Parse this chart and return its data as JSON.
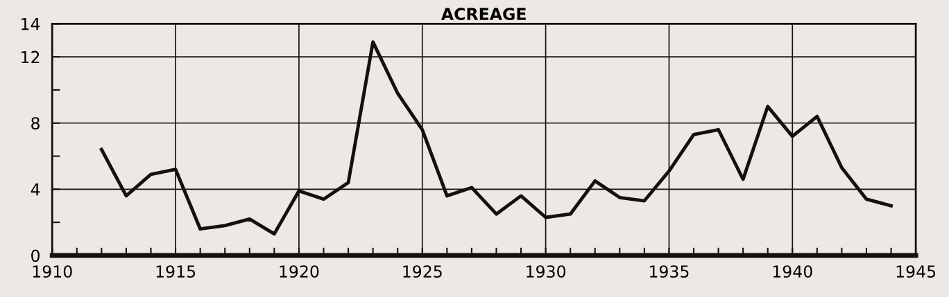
{
  "chart_data": {
    "type": "line",
    "title": "ACREAGE",
    "x": [
      1912,
      1913,
      1914,
      1915,
      1916,
      1917,
      1918,
      1919,
      1920,
      1921,
      1922,
      1923,
      1924,
      1925,
      1926,
      1927,
      1928,
      1929,
      1930,
      1931,
      1932,
      1933,
      1934,
      1935,
      1936,
      1937,
      1938,
      1939,
      1940,
      1941,
      1942,
      1943,
      1944
    ],
    "series": [
      {
        "color": "#111111",
        "values": [
          6.4,
          3.6,
          4.9,
          5.2,
          1.6,
          1.8,
          2.2,
          1.3,
          3.9,
          3.4,
          4.4,
          12.9,
          9.8,
          7.6,
          3.6,
          4.1,
          2.5,
          3.6,
          2.3,
          2.5,
          4.5,
          3.5,
          3.3,
          5.1,
          7.3,
          7.6,
          4.6,
          9.0,
          7.2,
          8.4,
          5.3,
          3.4,
          3.0
        ]
      }
    ],
    "xlim": [
      1910,
      1945
    ],
    "xticks": [
      1910,
      {
        "value": 1911,
        "label": null
      },
      {
        "value": 1912,
        "label": null
      },
      {
        "value": 1913,
        "label": null
      },
      {
        "value": 1914,
        "label": null
      },
      1915,
      {
        "value": 1916,
        "label": null
      },
      {
        "value": 1917,
        "label": null
      },
      {
        "value": 1918,
        "label": null
      },
      {
        "value": 1919,
        "label": null
      },
      1920,
      {
        "value": 1921,
        "label": null
      },
      {
        "value": 1922,
        "label": null
      },
      {
        "value": 1923,
        "label": null
      },
      {
        "value": 1924,
        "label": null
      },
      1925,
      {
        "value": 1926,
        "label": null
      },
      {
        "value": 1927,
        "label": null
      },
      {
        "value": 1928,
        "label": null
      },
      {
        "value": 1929,
        "label": null
      },
      1930,
      {
        "value": 1931,
        "label": null
      },
      {
        "value": 1932,
        "label": null
      },
      {
        "value": 1933,
        "label": null
      },
      {
        "value": 1934,
        "label": null
      },
      1935,
      {
        "value": 1936,
        "label": null
      },
      {
        "value": 1937,
        "label": null
      },
      {
        "value": 1938,
        "label": null
      },
      {
        "value": 1939,
        "label": null
      },
      1940,
      {
        "value": 1941,
        "label": null
      },
      {
        "value": 1942,
        "label": null
      },
      {
        "value": 1943,
        "label": null
      },
      {
        "value": 1944,
        "label": null
      },
      1945
    ],
    "ylim": [
      0,
      14
    ],
    "yticks": [
      0,
      {
        "value": 2,
        "label": null
      },
      4,
      {
        "value": 6,
        "label": null
      },
      8,
      {
        "value": 10,
        "label": null
      },
      12,
      14
    ],
    "grid": true,
    "marker": "none",
    "line_style": "solid",
    "legend": false
  }
}
